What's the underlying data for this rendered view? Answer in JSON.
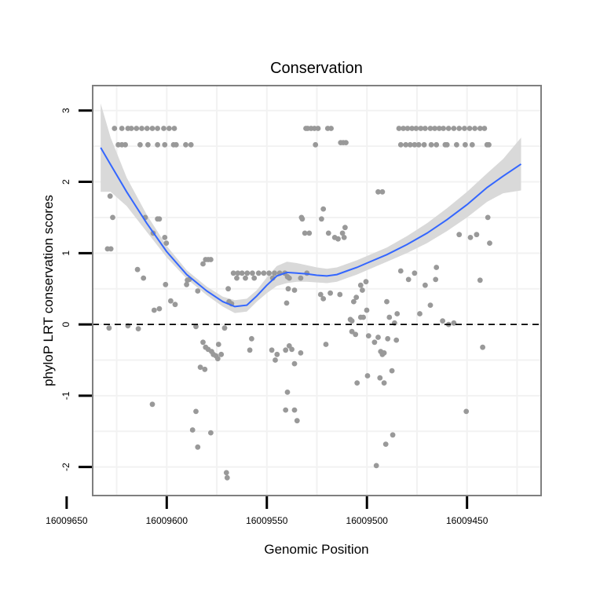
{
  "chart_data": {
    "type": "scatter",
    "title": "Conservation",
    "xlabel": "Genomic Position",
    "ylabel": "phyloP LRT conservation scores",
    "x_reversed": true,
    "xlim": [
      16009637,
      16009413
    ],
    "ylim": [
      -2.4,
      3.35
    ],
    "x_ticks": [
      16009650,
      16009600,
      16009550,
      16009500,
      16009450
    ],
    "x_tick_labels": [
      "16009650",
      "16009600",
      "16009550",
      "16009500",
      "16009450"
    ],
    "y_ticks": [
      -2,
      -1,
      0,
      1,
      2,
      3
    ],
    "y_tick_labels": [
      "-2",
      "-1",
      "0",
      "1",
      "2",
      "3"
    ],
    "reference_line": {
      "y": 0,
      "style": "dashed"
    },
    "grid": true,
    "colors": {
      "points": "#999999",
      "smooth": "#3366ff",
      "ribbon": "#d9d9d9",
      "grid": "#f2f2f2",
      "border": "#7f7f7f"
    },
    "points": [
      [
        16009626.1,
        2.75
      ],
      [
        16009622.4,
        2.75
      ],
      [
        16009619.4,
        2.75
      ],
      [
        16009617.7,
        2.75
      ],
      [
        16009615.1,
        2.75
      ],
      [
        16009612.5,
        2.75
      ],
      [
        16009609.8,
        2.75
      ],
      [
        16009607.2,
        2.75
      ],
      [
        16009604.6,
        2.75
      ],
      [
        16009601.5,
        2.75
      ],
      [
        16009598.8,
        2.75
      ],
      [
        16009596.2,
        2.75
      ],
      [
        16009624.2,
        2.52
      ],
      [
        16009622.4,
        2.52
      ],
      [
        16009620.7,
        2.52
      ],
      [
        16009613.3,
        2.52
      ],
      [
        16009609.4,
        2.52
      ],
      [
        16009604.6,
        2.52
      ],
      [
        16009601.0,
        2.52
      ],
      [
        16009596.6,
        2.52
      ],
      [
        16009595.3,
        2.52
      ],
      [
        16009590.5,
        2.52
      ],
      [
        16009587.9,
        2.52
      ],
      [
        16009627.9,
        1.06
      ],
      [
        16009629.6,
        1.06
      ],
      [
        16009628.3,
        1.8
      ],
      [
        16009627.0,
        1.5
      ],
      [
        16009628.8,
        -0.05
      ],
      [
        16009619.4,
        -0.02
      ],
      [
        16009614.2,
        -0.06
      ],
      [
        16009610.7,
        1.5
      ],
      [
        16009614.6,
        0.77
      ],
      [
        16009611.6,
        0.65
      ],
      [
        16009606.8,
        1.28
      ],
      [
        16009603.7,
        1.48
      ],
      [
        16009604.6,
        1.48
      ],
      [
        16009601.0,
        1.22
      ],
      [
        16009600.2,
        1.14
      ],
      [
        16009606.3,
        0.2
      ],
      [
        16009603.7,
        0.22
      ],
      [
        16009598.0,
        0.33
      ],
      [
        16009595.8,
        0.28
      ],
      [
        16009600.6,
        0.56
      ],
      [
        16009607.2,
        -1.12
      ],
      [
        16009589.7,
        0.62
      ],
      [
        16009588.8,
        0.63
      ],
      [
        16009590.1,
        0.56
      ],
      [
        16009584.5,
        0.47
      ],
      [
        16009581.9,
        0.85
      ],
      [
        16009580.6,
        0.91
      ],
      [
        16009579.3,
        0.91
      ],
      [
        16009578.0,
        0.91
      ],
      [
        16009585.4,
        -0.03
      ],
      [
        16009581.9,
        -0.25
      ],
      [
        16009580.6,
        -0.32
      ],
      [
        16009579.3,
        -0.35
      ],
      [
        16009577.6,
        -0.38
      ],
      [
        16009575.4,
        -0.44
      ],
      [
        16009574.1,
        -0.28
      ],
      [
        16009572.8,
        -0.42
      ],
      [
        16009571.1,
        -0.05
      ],
      [
        16009569.3,
        0.5
      ],
      [
        16009567.6,
        0.29
      ],
      [
        16009583.2,
        -0.6
      ],
      [
        16009581.0,
        -0.63
      ],
      [
        16009576.7,
        -0.42
      ],
      [
        16009574.5,
        -0.48
      ],
      [
        16009587.1,
        -1.48
      ],
      [
        16009585.4,
        -1.22
      ],
      [
        16009584.5,
        -1.72
      ],
      [
        16009578.0,
        -1.52
      ],
      [
        16009570.2,
        -2.08
      ],
      [
        16009569.8,
        -2.15
      ],
      [
        16009568.9,
        0.32
      ],
      [
        16009566.7,
        0.72
      ],
      [
        16009564.5,
        0.72
      ],
      [
        16009562.4,
        0.72
      ],
      [
        16009559.8,
        0.72
      ],
      [
        16009557.2,
        0.72
      ],
      [
        16009554.1,
        0.72
      ],
      [
        16009551.5,
        0.72
      ],
      [
        16009548.9,
        0.72
      ],
      [
        16009546.2,
        0.72
      ],
      [
        16009543.6,
        0.72
      ],
      [
        16009541.0,
        0.72
      ],
      [
        16009565.0,
        0.65
      ],
      [
        16009560.7,
        0.65
      ],
      [
        16009556.3,
        0.65
      ],
      [
        16009547.1,
        0.65
      ],
      [
        16009533.1,
        0.65
      ],
      [
        16009530.0,
        0.72
      ],
      [
        16009540.1,
        0.3
      ],
      [
        16009539.3,
        0.5
      ],
      [
        16009539.7,
        0.67
      ],
      [
        16009538.8,
        0.65
      ],
      [
        16009536.2,
        0.48
      ],
      [
        16009558.5,
        -0.36
      ],
      [
        16009557.6,
        -0.2
      ],
      [
        16009547.5,
        -0.36
      ],
      [
        16009545.8,
        -0.5
      ],
      [
        16009544.9,
        -0.42
      ],
      [
        16009540.6,
        -0.36
      ],
      [
        16009538.8,
        -0.3
      ],
      [
        16009537.5,
        -0.35
      ],
      [
        16009536.2,
        -0.55
      ],
      [
        16009533.1,
        -0.4
      ],
      [
        16009540.6,
        -1.2
      ],
      [
        16009539.7,
        -0.95
      ],
      [
        16009536.2,
        -1.2
      ],
      [
        16009534.9,
        -1.35
      ],
      [
        16009532.7,
        1.5
      ],
      [
        16009532.3,
        1.48
      ],
      [
        16009531.0,
        1.28
      ],
      [
        16009528.8,
        1.28
      ],
      [
        16009530.5,
        2.75
      ],
      [
        16009529.6,
        2.75
      ],
      [
        16009527.9,
        2.75
      ],
      [
        16009526.2,
        2.75
      ],
      [
        16009524.4,
        2.75
      ],
      [
        16009519.6,
        2.75
      ],
      [
        16009517.9,
        2.75
      ],
      [
        16009525.7,
        2.52
      ],
      [
        16009513.1,
        2.55
      ],
      [
        16009511.8,
        2.55
      ],
      [
        16009510.5,
        2.55
      ],
      [
        16009521.8,
        1.62
      ],
      [
        16009522.7,
        1.48
      ],
      [
        16009519.2,
        1.28
      ],
      [
        16009516.1,
        1.22
      ],
      [
        16009514.4,
        1.2
      ],
      [
        16009512.2,
        1.28
      ],
      [
        16009511.4,
        1.22
      ],
      [
        16009510.9,
        1.36
      ],
      [
        16009520.5,
        -0.28
      ],
      [
        16009521.8,
        0.36
      ],
      [
        16009523.1,
        0.42
      ],
      [
        16009518.3,
        0.44
      ],
      [
        16009513.5,
        0.42
      ],
      [
        16009508.3,
        0.07
      ],
      [
        16009507.5,
        0.05
      ],
      [
        16009506.6,
        0.32
      ],
      [
        16009505.3,
        0.38
      ],
      [
        16009503.1,
        0.55
      ],
      [
        16009502.3,
        0.48
      ],
      [
        16009500.5,
        0.6
      ],
      [
        16009507.5,
        -0.1
      ],
      [
        16009505.7,
        -0.14
      ],
      [
        16009503.1,
        0.1
      ],
      [
        16009501.8,
        0.1
      ],
      [
        16009500.1,
        0.2
      ],
      [
        16009499.2,
        -0.16
      ],
      [
        16009496.2,
        -0.25
      ],
      [
        16009494.4,
        -0.18
      ],
      [
        16009493.1,
        -0.38
      ],
      [
        16009492.3,
        -0.42
      ],
      [
        16009491.4,
        -0.4
      ],
      [
        16009489.6,
        -0.2
      ],
      [
        16009488.8,
        0.1
      ],
      [
        16009486.2,
        0.02
      ],
      [
        16009485.3,
        -0.22
      ],
      [
        16009504.9,
        -0.82
      ],
      [
        16009499.7,
        -0.72
      ],
      [
        16009493.5,
        -0.75
      ],
      [
        16009491.4,
        -0.82
      ],
      [
        16009487.5,
        -0.65
      ],
      [
        16009494.4,
        1.86
      ],
      [
        16009492.3,
        1.86
      ],
      [
        16009490.1,
        0.32
      ],
      [
        16009484.9,
        0.15
      ],
      [
        16009483.1,
        0.75
      ],
      [
        16009479.2,
        0.63
      ],
      [
        16009476.2,
        0.72
      ],
      [
        16009473.6,
        0.15
      ],
      [
        16009470.9,
        0.55
      ],
      [
        16009468.3,
        0.27
      ],
      [
        16009465.7,
        0.63
      ],
      [
        16009465.3,
        0.8
      ],
      [
        16009462.2,
        0.05
      ],
      [
        16009459.2,
        0.0
      ],
      [
        16009456.6,
        0.02
      ],
      [
        16009453.9,
        1.26
      ],
      [
        16009450.4,
        -1.22
      ],
      [
        16009448.3,
        1.22
      ],
      [
        16009445.2,
        1.26
      ],
      [
        16009443.5,
        0.62
      ],
      [
        16009442.2,
        -0.32
      ],
      [
        16009439.6,
        1.5
      ],
      [
        16009438.7,
        1.14
      ],
      [
        16009487.1,
        -1.55
      ],
      [
        16009490.6,
        -1.68
      ],
      [
        16009495.3,
        -1.98
      ],
      [
        16009484.0,
        2.75
      ],
      [
        16009481.8,
        2.75
      ],
      [
        16009479.7,
        2.75
      ],
      [
        16009477.5,
        2.75
      ],
      [
        16009475.4,
        2.75
      ],
      [
        16009473.1,
        2.75
      ],
      [
        16009470.9,
        2.75
      ],
      [
        16009468.3,
        2.75
      ],
      [
        16009466.1,
        2.75
      ],
      [
        16009463.9,
        2.75
      ],
      [
        16009461.8,
        2.75
      ],
      [
        16009459.2,
        2.75
      ],
      [
        16009456.6,
        2.75
      ],
      [
        16009453.9,
        2.75
      ],
      [
        16009451.3,
        2.75
      ],
      [
        16009448.7,
        2.75
      ],
      [
        16009446.1,
        2.75
      ],
      [
        16009443.5,
        2.75
      ],
      [
        16009441.3,
        2.75
      ],
      [
        16009483.1,
        2.52
      ],
      [
        16009480.6,
        2.52
      ],
      [
        16009478.4,
        2.52
      ],
      [
        16009476.2,
        2.52
      ],
      [
        16009474.1,
        2.52
      ],
      [
        16009471.4,
        2.52
      ],
      [
        16009467.9,
        2.52
      ],
      [
        16009465.3,
        2.52
      ],
      [
        16009460.9,
        2.52
      ],
      [
        16009460.0,
        2.52
      ],
      [
        16009455.2,
        2.52
      ],
      [
        16009450.9,
        2.52
      ],
      [
        16009447.4,
        2.52
      ],
      [
        16009440.0,
        2.52
      ],
      [
        16009439.1,
        2.52
      ]
    ],
    "smooth": {
      "x": [
        16009633.0,
        16009628.0,
        16009620.0,
        16009610.0,
        16009600.0,
        16009590.0,
        16009580.0,
        16009572.0,
        16009566.0,
        16009560.0,
        16009555.0,
        16009550.0,
        16009545.0,
        16009540.0,
        16009535.0,
        16009530.0,
        16009525.0,
        16009520.0,
        16009515.0,
        16009510.0,
        16009505.0,
        16009500.0,
        16009490.0,
        16009480.0,
        16009470.0,
        16009460.0,
        16009450.0,
        16009440.0,
        16009432.0,
        16009423.0
      ],
      "y": [
        2.48,
        2.24,
        1.86,
        1.42,
        1.02,
        0.7,
        0.47,
        0.32,
        0.25,
        0.27,
        0.4,
        0.55,
        0.68,
        0.73,
        0.72,
        0.71,
        0.69,
        0.68,
        0.7,
        0.75,
        0.8,
        0.86,
        0.98,
        1.12,
        1.28,
        1.47,
        1.68,
        1.92,
        2.08,
        2.25
      ],
      "lower": [
        1.86,
        1.86,
        1.66,
        1.3,
        0.94,
        0.64,
        0.41,
        0.25,
        0.16,
        0.18,
        0.32,
        0.44,
        0.54,
        0.58,
        0.6,
        0.6,
        0.59,
        0.58,
        0.6,
        0.65,
        0.7,
        0.76,
        0.88,
        1.0,
        1.14,
        1.31,
        1.5,
        1.72,
        1.84,
        1.88
      ],
      "upper": [
        3.1,
        2.62,
        2.06,
        1.54,
        1.1,
        0.76,
        0.53,
        0.39,
        0.34,
        0.36,
        0.48,
        0.66,
        0.82,
        0.88,
        0.86,
        0.83,
        0.8,
        0.78,
        0.8,
        0.85,
        0.9,
        0.96,
        1.08,
        1.24,
        1.42,
        1.63,
        1.86,
        2.12,
        2.32,
        2.62
      ]
    }
  }
}
